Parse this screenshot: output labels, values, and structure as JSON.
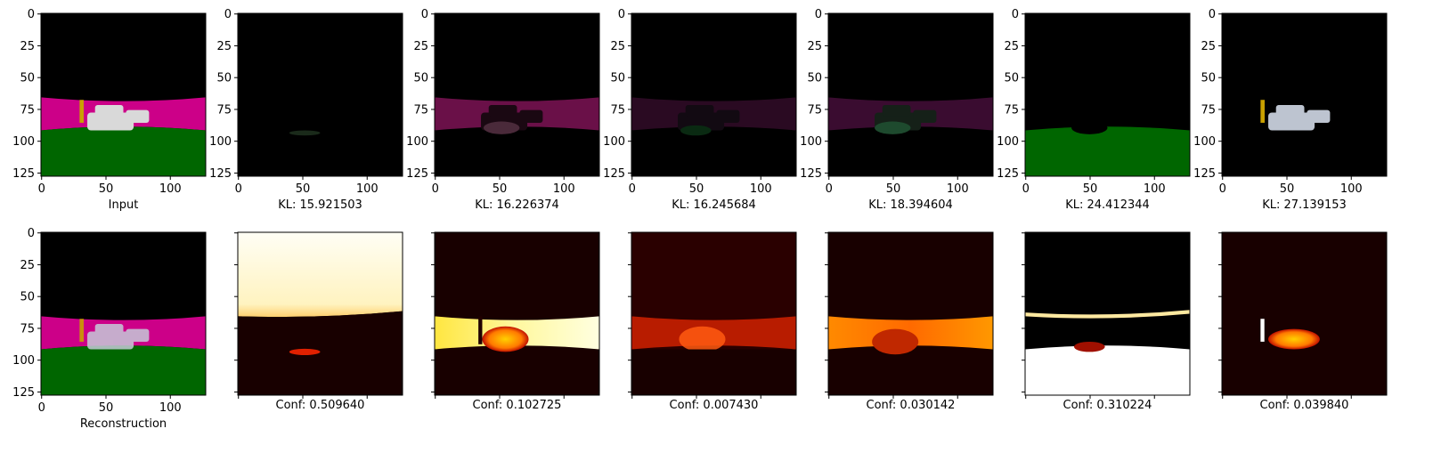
{
  "chart_data": {
    "type": "image_grid",
    "image_size": [
      128,
      128
    ],
    "x_ticks": [
      0,
      50,
      100
    ],
    "y_ticks": [
      0,
      25,
      50,
      75,
      100,
      125
    ],
    "colors": {
      "sky": "#000000",
      "magenta": "#cc0088",
      "grass": "#006600",
      "car": "#d9d9d9",
      "pole": "#c9a000",
      "heat_low": "#180000",
      "heat_high": "#fffbe0"
    },
    "top_row": [
      {
        "caption": "Input",
        "content": "full-scene"
      },
      {
        "caption": "KL: 15.921503",
        "content": "faint-car"
      },
      {
        "caption": "KL: 16.226374",
        "content": "magenta-band-dark"
      },
      {
        "caption": "KL: 16.245684",
        "content": "faint-band"
      },
      {
        "caption": "KL: 18.394604",
        "content": "faint-band-green-car"
      },
      {
        "caption": "KL: 24.412344",
        "content": "grass-only"
      },
      {
        "caption": "KL: 27.139153",
        "content": "cars-pole-only"
      }
    ],
    "bottom_row": [
      {
        "caption": "Reconstruction",
        "content": "reconstruction",
        "show_ticks": true
      },
      {
        "caption": "Conf: 0.509640",
        "content": "heat-sky"
      },
      {
        "caption": "Conf: 0.102725",
        "content": "heat-band"
      },
      {
        "caption": "Conf: 0.007430",
        "content": "heat-diffuse"
      },
      {
        "caption": "Conf: 0.030142",
        "content": "heat-band-orange"
      },
      {
        "caption": "Conf: 0.310224",
        "content": "heat-grass"
      },
      {
        "caption": "Conf: 0.039840",
        "content": "heat-cars"
      }
    ]
  }
}
